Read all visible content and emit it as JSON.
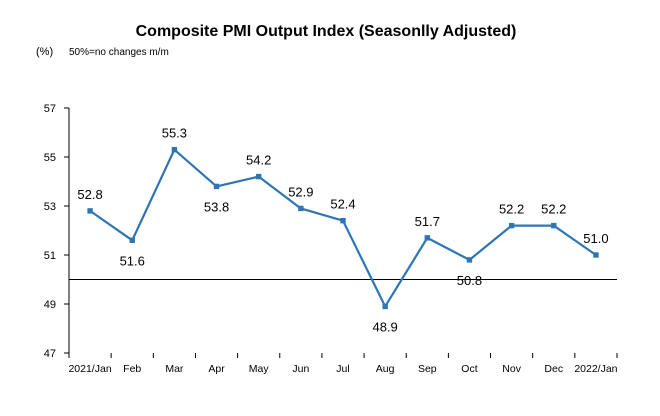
{
  "chart_data": {
    "type": "line",
    "title": "Composite PMI Output Index (Seasonlly Adjusted)",
    "unit_label": "(%)",
    "note": "50%=no changes m/m",
    "categories": [
      "2021/Jan",
      "Feb",
      "Mar",
      "Apr",
      "May",
      "Jun",
      "Jul",
      "Aug",
      "Sep",
      "Oct",
      "Nov",
      "Dec",
      "2022/Jan"
    ],
    "values": [
      52.8,
      51.6,
      55.3,
      53.8,
      54.2,
      52.9,
      52.4,
      48.9,
      51.7,
      50.8,
      52.2,
      52.2,
      51.0
    ],
    "data_labels": [
      "52.8",
      "51.6",
      "55.3",
      "53.8",
      "54.2",
      "52.9",
      "52.4",
      "48.9",
      "51.7",
      "50.8",
      "52.2",
      "52.2",
      "51.0"
    ],
    "label_position": [
      "above",
      "below",
      "above",
      "below",
      "above",
      "above",
      "above",
      "below",
      "above",
      "below",
      "above",
      "above",
      "above"
    ],
    "yticks": [
      "57",
      "55",
      "53",
      "51",
      "49",
      "47"
    ],
    "ylim": [
      47,
      57
    ],
    "baseline": 50,
    "xlabel": "",
    "ylabel": "",
    "grid": false,
    "line_color": "#2E75B6"
  }
}
